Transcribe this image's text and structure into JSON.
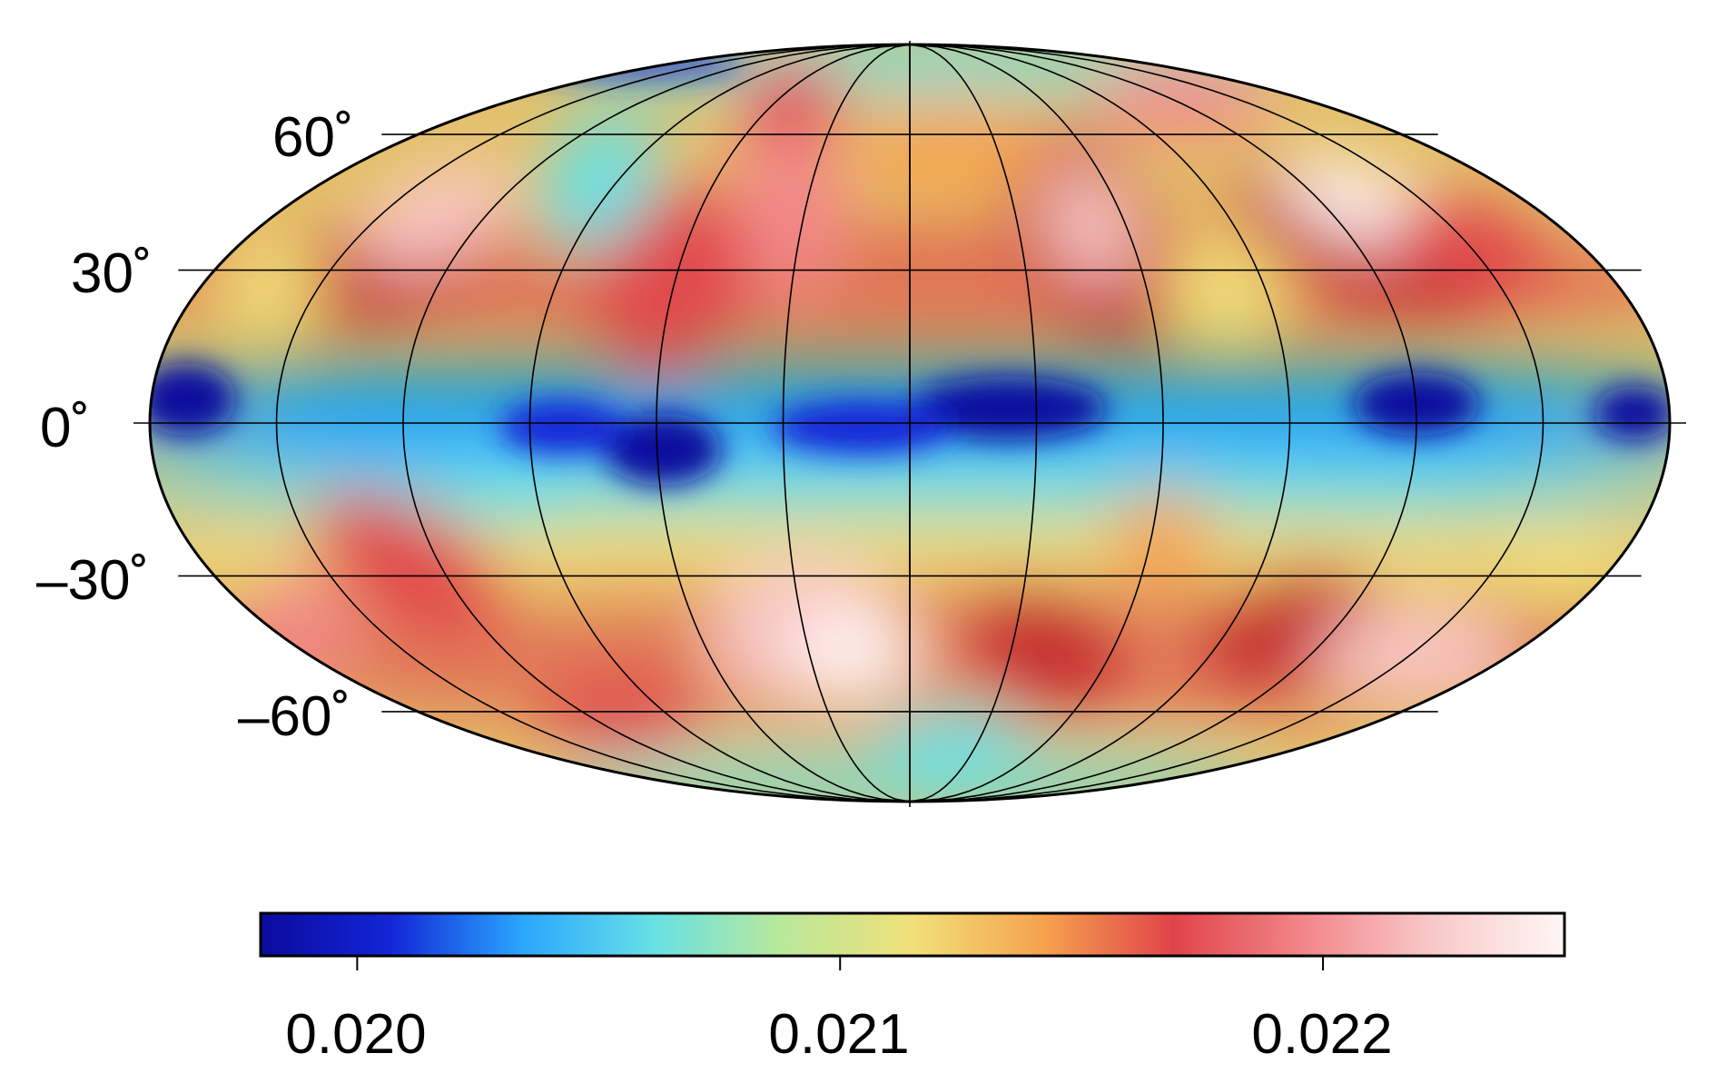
{
  "map": {
    "projection": "Mollweide",
    "field_description": "",
    "graticule": {
      "parallels_deg": [
        -60,
        -30,
        0,
        30,
        60
      ],
      "meridian_step_deg": 30
    },
    "lat_labels": [
      "60˚",
      "30˚",
      "0˚",
      "–30˚",
      "–60˚"
    ]
  },
  "colorbar": {
    "range": [
      0.0198,
      0.0225
    ],
    "ticks": [
      0.02,
      0.021,
      0.022
    ],
    "tick_labels": [
      "0.020",
      "0.021",
      "0.022"
    ],
    "colors": [
      "#0a0a9e",
      "#1326d6",
      "#2aa6ff",
      "#66e0e6",
      "#b9e89a",
      "#f1e07a",
      "#f6a24e",
      "#e0444a",
      "#f2868a",
      "#f9c9c9",
      "#fff6f6"
    ]
  }
}
